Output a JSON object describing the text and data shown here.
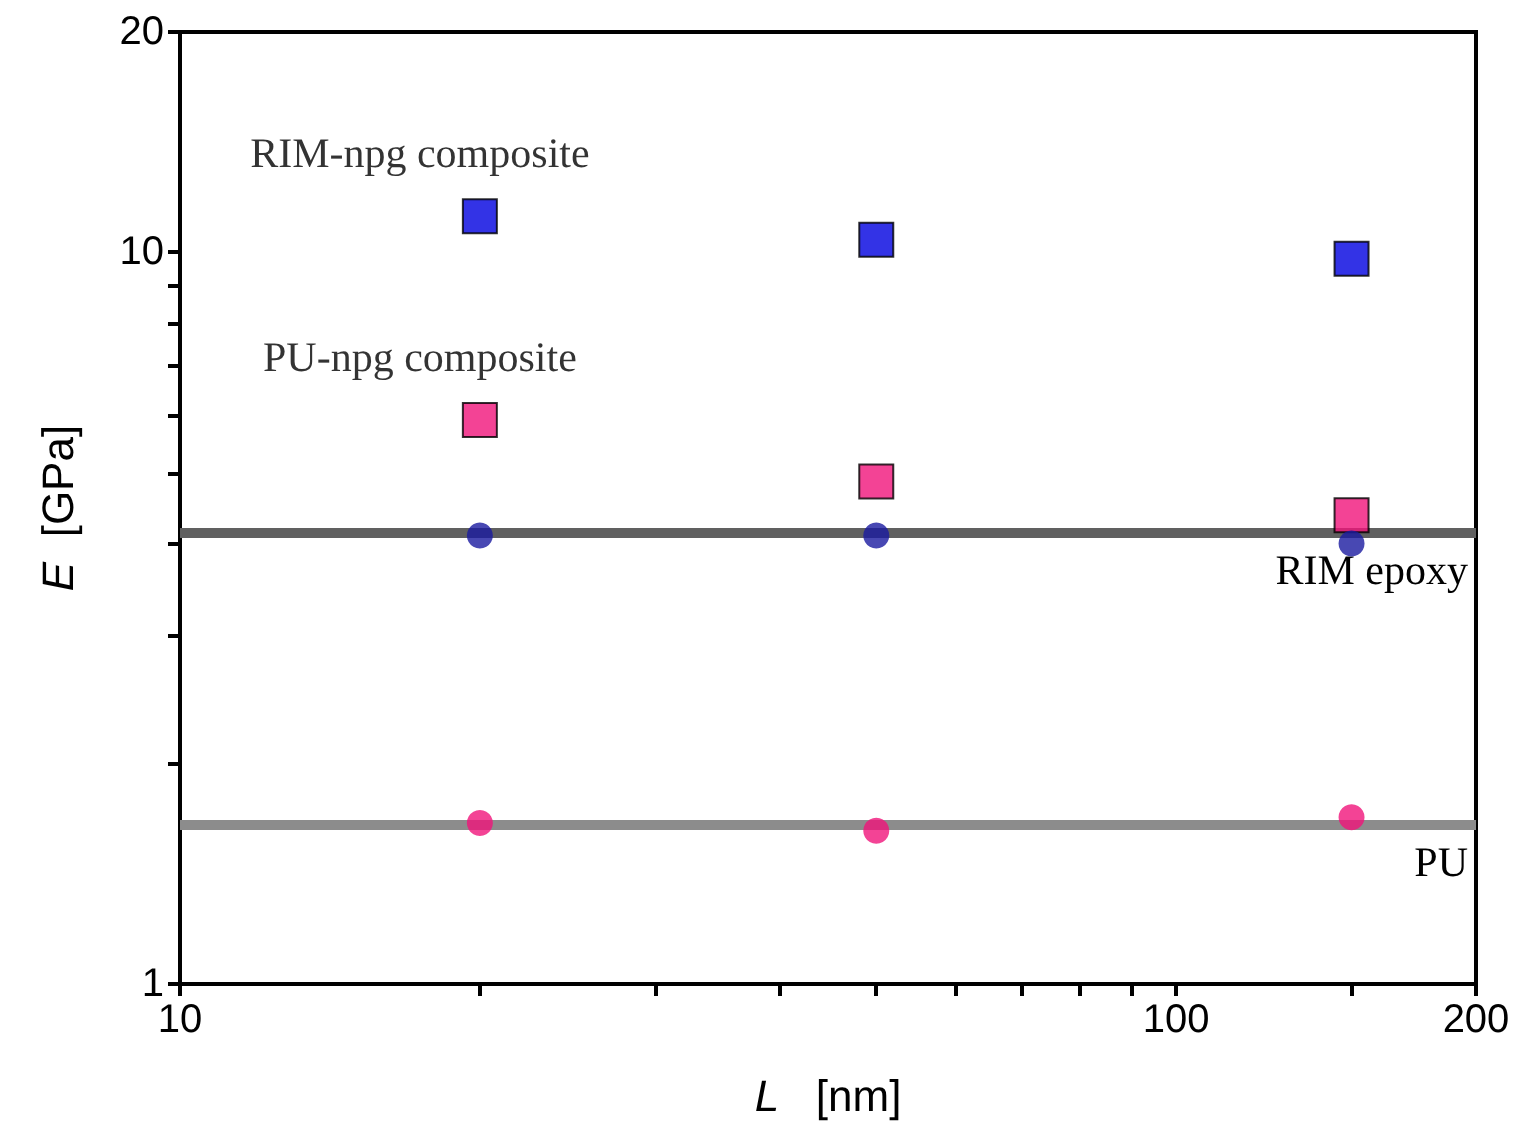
{
  "chart_data": {
    "type": "scatter",
    "xlabel": "L   [nm]",
    "ylabel": "E  [GPa]",
    "log": "xy",
    "x": [
      20,
      50,
      150
    ],
    "series": [
      {
        "name": "RIM-npg composite",
        "color": "#0000e0",
        "marker": "square",
        "values": [
          11.2,
          10.4,
          9.8
        ]
      },
      {
        "name": "PU-npg composite",
        "color": "#f0147a",
        "marker": "square",
        "values": [
          5.9,
          4.86,
          4.37
        ]
      },
      {
        "color": "#1a1aa0",
        "marker": "circle",
        "values": [
          4.1,
          4.1,
          4.0
        ]
      },
      {
        "color": "#f0147a",
        "marker": "circle",
        "values": [
          1.66,
          1.62,
          1.69
        ]
      }
    ],
    "ref_lines": [
      {
        "axis": "y",
        "value": 4.13,
        "label": "RIM epoxy",
        "color": "#606060"
      },
      {
        "axis": "y",
        "value": 1.65,
        "label": "PU",
        "color": "#8c8c8c"
      }
    ],
    "xlim": [
      10,
      200
    ],
    "xticks": [
      10,
      {
        "value": 20,
        "label": null
      },
      {
        "value": 30,
        "label": null
      },
      {
        "value": 40,
        "label": null
      },
      {
        "value": 50,
        "label": null
      },
      {
        "value": 60,
        "label": null
      },
      {
        "value": 70,
        "label": null
      },
      {
        "value": 80,
        "label": null
      },
      {
        "value": 90,
        "label": null
      },
      100,
      {
        "value": 150,
        "label": null
      },
      200
    ],
    "ylim": [
      1,
      20
    ],
    "yticks": [
      1,
      {
        "value": 2,
        "label": null
      },
      {
        "value": 3,
        "label": null
      },
      {
        "value": 4,
        "label": null
      },
      {
        "value": 5,
        "label": null
      },
      {
        "value": 6,
        "label": null
      },
      {
        "value": 7,
        "label": null
      },
      {
        "value": 8,
        "label": null
      },
      {
        "value": 9,
        "label": null
      },
      10,
      20
    ],
    "grid": false,
    "legend": false
  }
}
